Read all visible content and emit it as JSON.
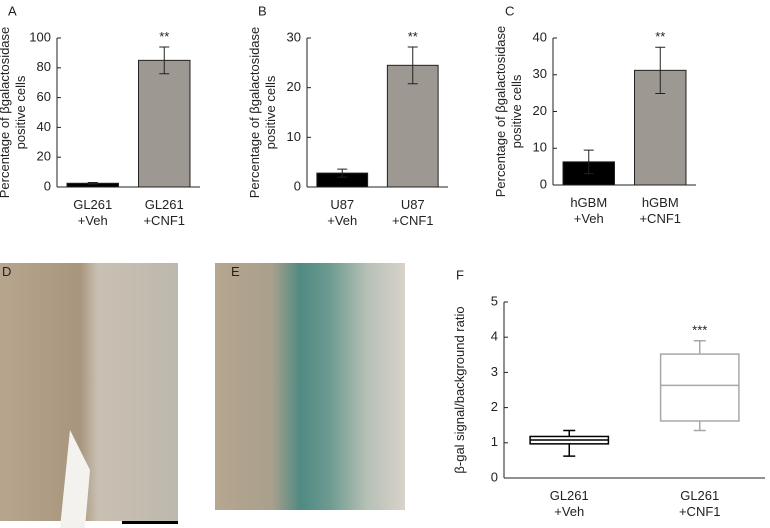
{
  "chart_data": [
    {
      "type": "bar",
      "panel_label": "A",
      "ylabel": "Percentage of βgalactosidase\npositive cells",
      "categories": [
        "GL261\n+Veh",
        "GL261\n+CNF1"
      ],
      "values": [
        2.5,
        85
      ],
      "errors": [
        0.5,
        9
      ],
      "colors": [
        "#000000",
        "#9e9892"
      ],
      "annotation": "**",
      "annotation_category": 1,
      "ylim": [
        0,
        100
      ],
      "yticks": [
        0,
        20,
        40,
        60,
        80,
        100
      ],
      "grid": false
    },
    {
      "type": "bar",
      "panel_label": "B",
      "ylabel": "Percentage of βgalactosidase\npositive cells",
      "categories": [
        "U87\n+Veh",
        "U87\n+CNF1"
      ],
      "values": [
        2.8,
        24.5
      ],
      "errors": [
        0.8,
        3.7
      ],
      "colors": [
        "#000000",
        "#9e9892"
      ],
      "annotation": "**",
      "annotation_category": 1,
      "ylim": [
        0,
        30
      ],
      "yticks": [
        0,
        10,
        20,
        30
      ],
      "grid": false
    },
    {
      "type": "bar",
      "panel_label": "C",
      "ylabel": "Percentage of βgalactosidase\npositive cells",
      "categories": [
        "hGBM\n+Veh",
        "hGBM\n+CNF1"
      ],
      "values": [
        6.3,
        31.2
      ],
      "errors": [
        3.2,
        6.3
      ],
      "colors": [
        "#000000",
        "#9e9892"
      ],
      "annotation": "**",
      "annotation_category": 1,
      "ylim": [
        0,
        40
      ],
      "yticks": [
        0,
        10,
        20,
        30,
        40
      ],
      "grid": false
    },
    {
      "type": "box",
      "panel_label": "F",
      "ylabel": "β-gal signal/background ratio",
      "categories": [
        "GL261\n+Veh",
        "GL261\n+CNF1"
      ],
      "min": [
        0.62,
        1.35
      ],
      "q1": [
        0.97,
        1.62
      ],
      "median": [
        1.08,
        2.63
      ],
      "q3": [
        1.18,
        3.52
      ],
      "max": [
        1.35,
        3.9
      ],
      "colors": [
        "#000000",
        "#a8a8a8"
      ],
      "annotation": "***",
      "annotation_category": 1,
      "ylim": [
        0,
        5
      ],
      "yticks": [
        0,
        1,
        2,
        3,
        4,
        5
      ],
      "grid": false
    }
  ],
  "images": [
    {
      "panel_label": "D"
    },
    {
      "panel_label": "E"
    }
  ]
}
